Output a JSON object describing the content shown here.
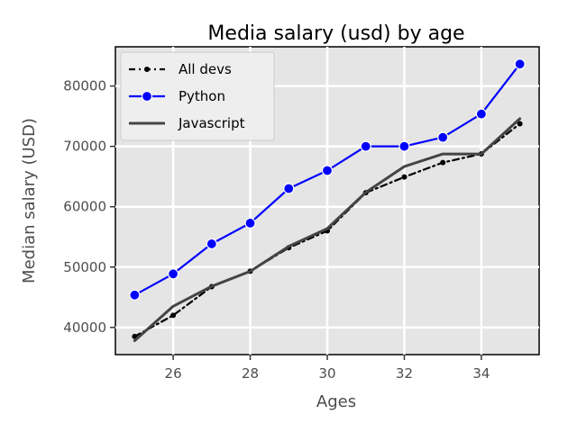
{
  "chart_data": {
    "type": "line",
    "title": "Media salary (usd) by age",
    "xlabel": "Ages",
    "ylabel": "Median salary (USD)",
    "xlim": [
      24.5,
      35.5
    ],
    "ylim": [
      35500,
      86500
    ],
    "xticks": [
      26,
      28,
      30,
      32,
      34
    ],
    "yticks": [
      40000,
      50000,
      60000,
      70000,
      80000
    ],
    "grid": true,
    "legend_position": "top-left",
    "x": [
      25,
      26,
      27,
      28,
      29,
      30,
      31,
      32,
      33,
      34,
      35
    ],
    "series": [
      {
        "name": "All devs",
        "values": [
          38496,
          42000,
          46752,
          49320,
          53200,
          56000,
          62316,
          64928,
          67317,
          68748,
          73752
        ],
        "color": "#000000",
        "style": "dash-dot",
        "marker": "dot"
      },
      {
        "name": "Python",
        "values": [
          45372,
          48876,
          53850,
          57287,
          63016,
          65998,
          70003,
          70000,
          71496,
          75370,
          83640
        ],
        "color": "#0000ff",
        "style": "solid",
        "marker": "circle"
      },
      {
        "name": "Javascript",
        "values": [
          37810,
          43515,
          46823,
          49293,
          53437,
          56373,
          62375,
          66674,
          68745,
          68746,
          74583
        ],
        "color": "#444444",
        "style": "solid",
        "marker": "none"
      }
    ]
  }
}
